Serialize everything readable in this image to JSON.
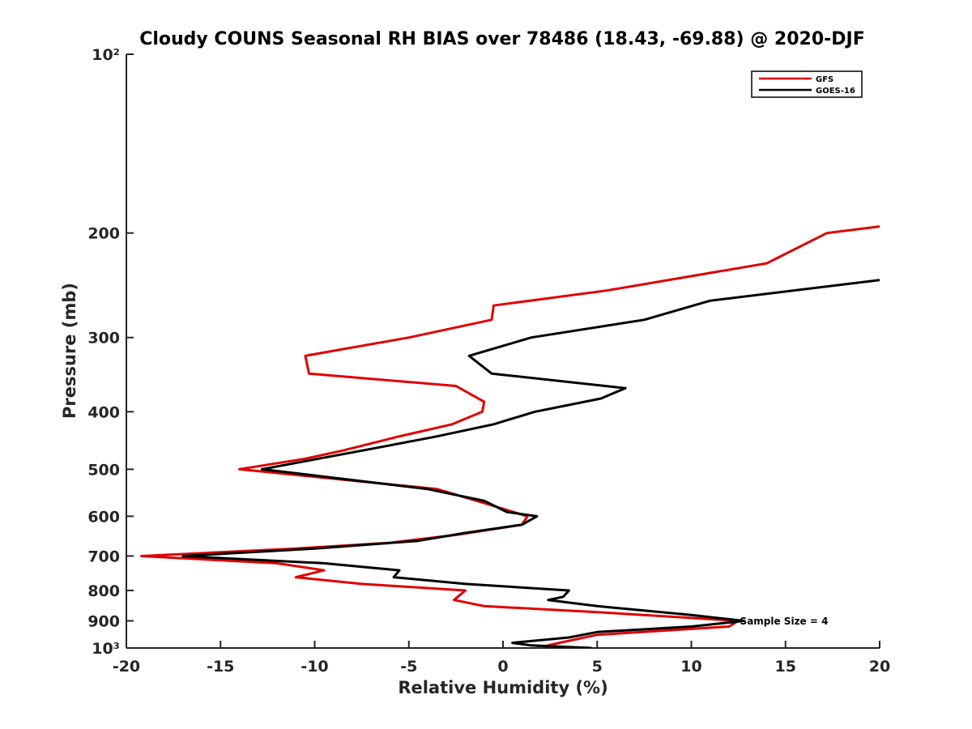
{
  "chart_data": {
    "type": "line",
    "title": "Cloudy COUNS Seasonal RH BIAS over 78486 (18.43, -69.88) @ 2020-DJF",
    "xlabel": "Relative Humidity (%)",
    "ylabel": "Pressure (mb)",
    "xlim": [
      -20,
      20
    ],
    "ylim": [
      100,
      1000
    ],
    "yscale": "log",
    "y_reversed": true,
    "grid": false,
    "legend_position": "top-right",
    "x_ticks": [
      -20,
      -15,
      -10,
      -5,
      0,
      5,
      10,
      15,
      20
    ],
    "x_tick_labels": [
      "-20",
      "-15",
      "-10",
      "-5",
      "0",
      "5",
      "10",
      "15",
      "20"
    ],
    "y_ticks": [
      100,
      200,
      300,
      400,
      500,
      600,
      700,
      800,
      900,
      1000
    ],
    "y_tick_labels": [
      "10²",
      "200",
      "300",
      "400",
      "500",
      "600",
      "700",
      "800",
      "900",
      "10³"
    ],
    "annotation": "Sample Size = 4",
    "series": [
      {
        "name": "GFS",
        "color": "#e00000",
        "points": [
          [
            20.0,
            195
          ],
          [
            17.2,
            200
          ],
          [
            14.0,
            225
          ],
          [
            5.5,
            250
          ],
          [
            -0.5,
            265
          ],
          [
            -0.6,
            280
          ],
          [
            -5.0,
            300
          ],
          [
            -10.5,
            322
          ],
          [
            -10.3,
            345
          ],
          [
            -2.5,
            362
          ],
          [
            -1.0,
            385
          ],
          [
            -1.1,
            400
          ],
          [
            -2.7,
            420
          ],
          [
            -5.5,
            440
          ],
          [
            -8.5,
            465
          ],
          [
            -10.5,
            480
          ],
          [
            -14.0,
            500
          ],
          [
            -3.5,
            540
          ],
          [
            -1.0,
            570
          ],
          [
            1.3,
            600
          ],
          [
            1.0,
            620
          ],
          [
            -2.5,
            645
          ],
          [
            -6.0,
            665
          ],
          [
            -11.0,
            680
          ],
          [
            -19.2,
            700
          ],
          [
            -12.0,
            720
          ],
          [
            -9.5,
            740
          ],
          [
            -11.0,
            760
          ],
          [
            -7.5,
            780
          ],
          [
            -2.0,
            800
          ],
          [
            -2.6,
            830
          ],
          [
            -1.0,
            850
          ],
          [
            5.0,
            870
          ],
          [
            12.5,
            900
          ],
          [
            12.0,
            920
          ],
          [
            5.0,
            950
          ],
          [
            3.0,
            980
          ],
          [
            1.8,
            1000
          ]
        ]
      },
      {
        "name": "GOES-16",
        "color": "#000000",
        "points": [
          [
            20.0,
            240
          ],
          [
            11.0,
            260
          ],
          [
            7.5,
            280
          ],
          [
            1.5,
            300
          ],
          [
            -1.8,
            322
          ],
          [
            -0.6,
            345
          ],
          [
            6.5,
            365
          ],
          [
            5.2,
            380
          ],
          [
            1.7,
            400
          ],
          [
            -0.5,
            420
          ],
          [
            -3.5,
            440
          ],
          [
            -7.0,
            462
          ],
          [
            -9.8,
            480
          ],
          [
            -12.8,
            500
          ],
          [
            -4.0,
            540
          ],
          [
            -1.0,
            565
          ],
          [
            0.2,
            590
          ],
          [
            1.8,
            600
          ],
          [
            1.0,
            620
          ],
          [
            -2.0,
            640
          ],
          [
            -4.5,
            660
          ],
          [
            -10.0,
            680
          ],
          [
            -17.0,
            700
          ],
          [
            -9.5,
            720
          ],
          [
            -5.5,
            740
          ],
          [
            -5.8,
            760
          ],
          [
            -2.0,
            780
          ],
          [
            3.5,
            800
          ],
          [
            3.2,
            820
          ],
          [
            2.4,
            830
          ],
          [
            5.0,
            850
          ],
          [
            10.0,
            880
          ],
          [
            12.8,
            900
          ],
          [
            10.0,
            920
          ],
          [
            5.0,
            940
          ],
          [
            3.5,
            960
          ],
          [
            0.5,
            980
          ],
          [
            1.5,
            990
          ],
          [
            4.7,
            1000
          ]
        ]
      }
    ]
  }
}
